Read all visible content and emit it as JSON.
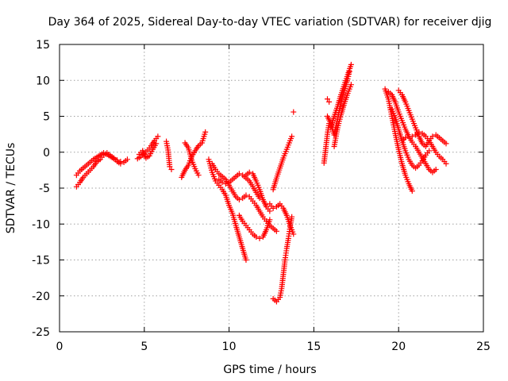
{
  "chart_data": {
    "type": "scatter",
    "title": "Day 364 of 2025, Sidereal Day-to-day VTEC variation (SDTVAR) for receiver djig",
    "xlabel": "GPS time / hours",
    "ylabel": "SDTVAR / TECUs",
    "xlim": [
      0,
      25
    ],
    "ylim": [
      -25,
      15
    ],
    "xticks": [
      0,
      5,
      10,
      15,
      20,
      25
    ],
    "yticks": [
      -25,
      -20,
      -15,
      -10,
      -5,
      0,
      5,
      10,
      15
    ],
    "grid": true,
    "marker": "plus",
    "color": "#ff0000",
    "series": [
      {
        "x": [
          1.0,
          1.2,
          1.4,
          1.6,
          1.8,
          2.0,
          2.2,
          2.4,
          2.6,
          2.8,
          3.0,
          3.2,
          3.4,
          3.6,
          3.8,
          4.0
        ],
        "y": [
          -4.8,
          -4.2,
          -3.5,
          -3.0,
          -2.5,
          -2.0,
          -1.3,
          -1.0,
          -0.4,
          -0.1,
          -0.5,
          -0.8,
          -1.3,
          -1.6,
          -1.4,
          -1.0
        ]
      },
      {
        "x": [
          1.0,
          1.2,
          1.4,
          1.6,
          1.8,
          2.0,
          2.2,
          2.4,
          2.6,
          2.8,
          3.0,
          3.2,
          3.4,
          3.6
        ],
        "y": [
          -3.2,
          -2.6,
          -2.2,
          -1.8,
          -1.4,
          -1.0,
          -0.7,
          -0.4,
          -0.1,
          -0.3,
          -0.6,
          -0.9,
          -1.1,
          -1.3
        ]
      },
      {
        "x": [
          4.6,
          4.8,
          5.0,
          5.2,
          5.4,
          5.6,
          5.8
        ],
        "y": [
          -0.9,
          -0.6,
          -0.2,
          0.3,
          0.9,
          1.6,
          2.2
        ]
      },
      {
        "x": [
          4.7,
          4.9,
          5.1,
          5.3,
          5.5,
          5.7
        ],
        "y": [
          -0.3,
          0.2,
          -0.8,
          -0.5,
          0.4,
          1.2
        ]
      },
      {
        "x": [
          6.3,
          6.4,
          6.5,
          6.6
        ],
        "y": [
          1.5,
          0.3,
          -2.0,
          -2.4
        ]
      },
      {
        "x": [
          7.2,
          7.4,
          7.6,
          7.8,
          8.0,
          8.2,
          8.4,
          8.6
        ],
        "y": [
          -3.5,
          -2.5,
          -1.8,
          -0.6,
          0.2,
          0.9,
          1.3,
          2.8
        ]
      },
      {
        "x": [
          7.4,
          7.6,
          7.8,
          8.0,
          8.2
        ],
        "y": [
          1.3,
          0.6,
          -1.1,
          -2.3,
          -3.2
        ]
      },
      {
        "x": [
          8.8,
          9.0,
          9.2,
          9.4,
          9.6,
          9.8,
          10.0,
          10.2,
          10.4,
          10.6,
          10.8,
          11.0
        ],
        "y": [
          -1.0,
          -2.8,
          -4.0,
          -4.6,
          -5.2,
          -6.0,
          -7.4,
          -8.5,
          -10.2,
          -11.8,
          -13.4,
          -15.0
        ]
      },
      {
        "x": [
          9.0,
          9.2,
          9.4,
          9.6,
          9.8,
          10.0,
          10.2,
          10.4,
          10.6,
          10.8,
          11.0,
          11.2,
          11.4,
          11.6,
          11.8,
          12.0,
          12.2,
          12.4,
          12.6,
          12.8
        ],
        "y": [
          -1.6,
          -2.4,
          -3.0,
          -3.4,
          -3.8,
          -4.6,
          -5.4,
          -6.2,
          -6.6,
          -6.4,
          -6.0,
          -6.2,
          -6.8,
          -7.4,
          -8.2,
          -9.0,
          -9.6,
          -10.2,
          -10.6,
          -11.0
        ]
      },
      {
        "x": [
          9.4,
          9.6,
          9.8,
          10.0,
          10.2,
          10.4,
          10.6,
          10.8,
          11.0,
          11.2,
          11.4,
          11.6,
          11.8
        ],
        "y": [
          -3.8,
          -4.2,
          -4.4,
          -4.2,
          -3.8,
          -3.4,
          -3.0,
          -3.2,
          -3.6,
          -4.0,
          -4.8,
          -5.6,
          -6.4
        ]
      },
      {
        "x": [
          11.0,
          11.2,
          11.4,
          11.6,
          11.8,
          12.0,
          12.2,
          12.4
        ],
        "y": [
          -3.2,
          -2.8,
          -3.0,
          -4.0,
          -5.2,
          -6.6,
          -7.6,
          -8.2
        ]
      },
      {
        "x": [
          10.6,
          10.8,
          11.0,
          11.2,
          11.4,
          11.6,
          11.8,
          12.0,
          12.2,
          12.4
        ],
        "y": [
          -8.8,
          -9.6,
          -10.2,
          -10.8,
          -11.4,
          -11.8,
          -12.0,
          -11.8,
          -10.8,
          -9.4
        ]
      },
      {
        "x": [
          12.6,
          12.8,
          13.0,
          13.2,
          13.4,
          13.5,
          13.6,
          13.7
        ],
        "y": [
          -5.2,
          -3.6,
          -2.2,
          -0.8,
          0.4,
          1.0,
          1.6,
          2.2
        ]
      },
      {
        "x": [
          12.4,
          12.6,
          12.8,
          13.0,
          13.2,
          13.4,
          13.6,
          13.8
        ],
        "y": [
          -7.2,
          -7.8,
          -7.6,
          -7.2,
          -7.8,
          -8.8,
          -10.2,
          -11.4
        ]
      },
      {
        "x": [
          12.6,
          12.8,
          13.0,
          13.1,
          13.2,
          13.3,
          13.4,
          13.5,
          13.6,
          13.7
        ],
        "y": [
          -20.4,
          -20.8,
          -20.2,
          -19.0,
          -17.0,
          -15.0,
          -13.4,
          -12.0,
          -10.4,
          -9.0
        ]
      },
      {
        "x": [
          13.8
        ],
        "y": [
          5.6
        ]
      },
      {
        "x": [
          15.6,
          15.7,
          15.8,
          15.9,
          16.0,
          16.2,
          16.4,
          16.6,
          16.8,
          17.0,
          17.2
        ],
        "y": [
          -1.5,
          0.5,
          2.5,
          4.0,
          3.6,
          5.0,
          6.4,
          8.0,
          9.4,
          10.8,
          12.2
        ]
      },
      {
        "x": [
          15.8,
          16.0,
          16.2,
          16.4,
          16.6,
          16.8,
          17.0,
          17.1
        ],
        "y": [
          5.0,
          4.0,
          2.4,
          4.6,
          7.0,
          8.6,
          10.2,
          11.2
        ]
      },
      {
        "x": [
          16.2,
          16.4,
          16.6,
          16.8,
          17.0,
          17.2
        ],
        "y": [
          0.8,
          3.4,
          5.2,
          6.8,
          8.2,
          9.4
        ]
      },
      {
        "x": [
          15.8,
          15.9
        ],
        "y": [
          7.4,
          7.0
        ]
      },
      {
        "x": [
          19.2,
          19.4,
          19.6,
          19.8,
          20.0,
          20.2,
          20.4,
          20.6,
          20.8
        ],
        "y": [
          8.8,
          7.4,
          5.0,
          2.6,
          0.4,
          -1.6,
          -3.2,
          -4.4,
          -5.4
        ]
      },
      {
        "x": [
          19.4,
          19.6,
          19.8,
          20.0,
          20.2,
          20.4,
          20.6,
          20.8,
          21.0,
          21.2,
          21.4,
          21.6,
          21.8,
          22.0,
          22.2
        ],
        "y": [
          8.4,
          8.0,
          7.0,
          5.6,
          4.4,
          3.2,
          2.2,
          1.4,
          0.8,
          0.0,
          -0.8,
          -1.6,
          -2.4,
          -2.8,
          -2.4
        ]
      },
      {
        "x": [
          20.0,
          20.2,
          20.4,
          20.6,
          20.8,
          21.0,
          21.2,
          21.4,
          21.6,
          21.8,
          22.0,
          22.2,
          22.4,
          22.6,
          22.8
        ],
        "y": [
          8.6,
          8.0,
          7.0,
          5.8,
          4.6,
          3.4,
          2.2,
          1.2,
          0.8,
          1.6,
          2.2,
          2.4,
          2.0,
          1.6,
          1.2
        ]
      },
      {
        "x": [
          20.2,
          20.4,
          20.6,
          20.8,
          21.0,
          21.2,
          21.4,
          21.6,
          21.8,
          22.0,
          22.2,
          22.4,
          22.6,
          22.8
        ],
        "y": [
          1.6,
          2.0,
          2.2,
          2.2,
          2.4,
          2.8,
          2.6,
          2.2,
          1.6,
          0.8,
          0.0,
          -0.6,
          -1.0,
          -1.6
        ]
      },
      {
        "x": [
          19.6,
          19.8,
          20.0,
          20.2,
          20.4,
          20.6,
          20.8,
          21.0,
          21.2,
          21.4,
          21.6,
          21.8
        ],
        "y": [
          6.0,
          4.8,
          3.2,
          1.6,
          0.2,
          -1.0,
          -1.8,
          -2.2,
          -1.8,
          -1.2,
          -0.4,
          0.2
        ]
      }
    ]
  }
}
